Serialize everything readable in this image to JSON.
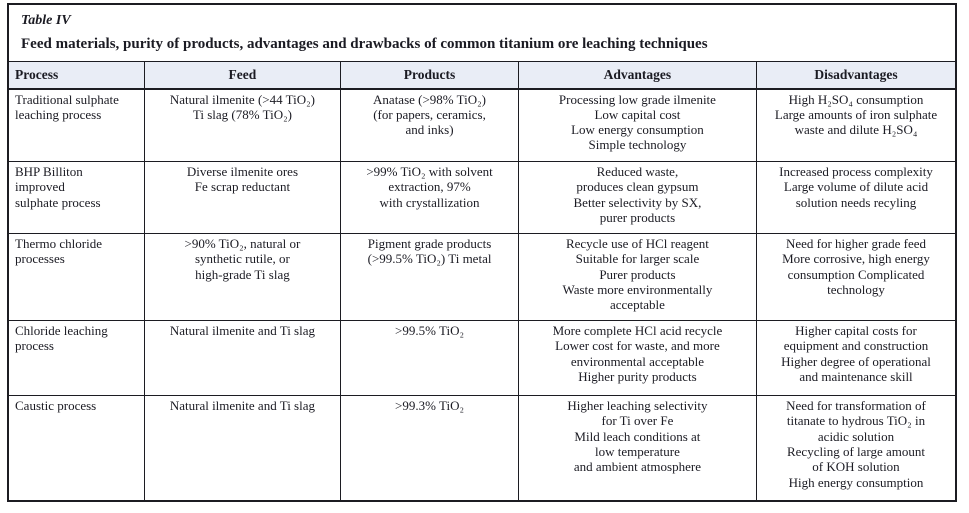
{
  "caption": {
    "label": "Table IV",
    "title": "Feed materials, purity of products, advantages and drawbacks of common titanium ore leaching techniques"
  },
  "colors": {
    "header_background": "#e9edf6",
    "border": "#1c1c22",
    "text": "#1b1b23"
  },
  "table": {
    "columns": [
      "Process",
      "Feed",
      "Products",
      "Advantages",
      "Disadvantages"
    ],
    "rows": [
      {
        "process": [
          "Traditional sulphate",
          "leaching process"
        ],
        "feed": [
          "Natural ilmenite (>44 TiO₂)",
          "Ti slag (78% TiO₂)"
        ],
        "products": [
          "Anatase (>98% TiO₂)",
          "(for papers, ceramics,",
          "and inks)"
        ],
        "advantages": [
          "Processing low grade ilmenite",
          "Low capital cost",
          "Low energy consumption",
          "Simple technology"
        ],
        "disadvantages": [
          "High H₂SO₄ consumption",
          "Large amounts of iron sulphate",
          "waste and dilute H₂SO₄"
        ]
      },
      {
        "process": [
          "BHP Billiton",
          "improved",
          "sulphate process"
        ],
        "feed": [
          "Diverse ilmenite ores",
          "Fe scrap reductant"
        ],
        "products": [
          ">99% TiO₂ with solvent",
          "extraction, 97%",
          "with crystallization"
        ],
        "advantages": [
          "Reduced waste,",
          "produces clean gypsum",
          "Better selectivity by SX,",
          "purer products"
        ],
        "disadvantages": [
          "Increased process complexity",
          "Large volume of dilute acid",
          "solution needs recyling"
        ]
      },
      {
        "process": [
          "Thermo chloride",
          "processes"
        ],
        "feed": [
          ">90% TiO₂, natural or",
          "synthetic rutile, or",
          "high-grade Ti slag"
        ],
        "products": [
          "Pigment grade products",
          "(>99.5% TiO₂) Ti metal"
        ],
        "advantages": [
          "Recycle use of HCl reagent",
          "Suitable for larger scale",
          "Purer products",
          "Waste more environmentally",
          "acceptable"
        ],
        "disadvantages": [
          "Need for higher grade feed",
          "More corrosive, high energy",
          "consumption Complicated",
          "technology"
        ]
      },
      {
        "process": [
          "Chloride leaching",
          "process"
        ],
        "feed": [
          "Natural ilmenite and Ti slag"
        ],
        "products": [
          ">99.5% TiO₂"
        ],
        "advantages": [
          "More complete HCl acid recycle",
          "Lower cost for waste, and more",
          "environmental acceptable",
          "Higher purity products"
        ],
        "disadvantages": [
          "Higher capital costs for",
          "equipment and construction",
          "Higher degree of operational",
          "and maintenance skill"
        ]
      },
      {
        "process": [
          "Caustic process"
        ],
        "feed": [
          "Natural ilmenite and Ti slag"
        ],
        "products": [
          ">99.3% TiO₂"
        ],
        "advantages": [
          "Higher leaching selectivity",
          "for Ti over Fe",
          "Mild leach conditions at",
          "low temperature",
          "and ambient atmosphere"
        ],
        "disadvantages": [
          "Need for transformation of",
          "titanate to hydrous TiO₂ in",
          "acidic solution",
          "Recycling of large amount",
          "of KOH solution",
          "High energy consumption"
        ]
      }
    ]
  }
}
